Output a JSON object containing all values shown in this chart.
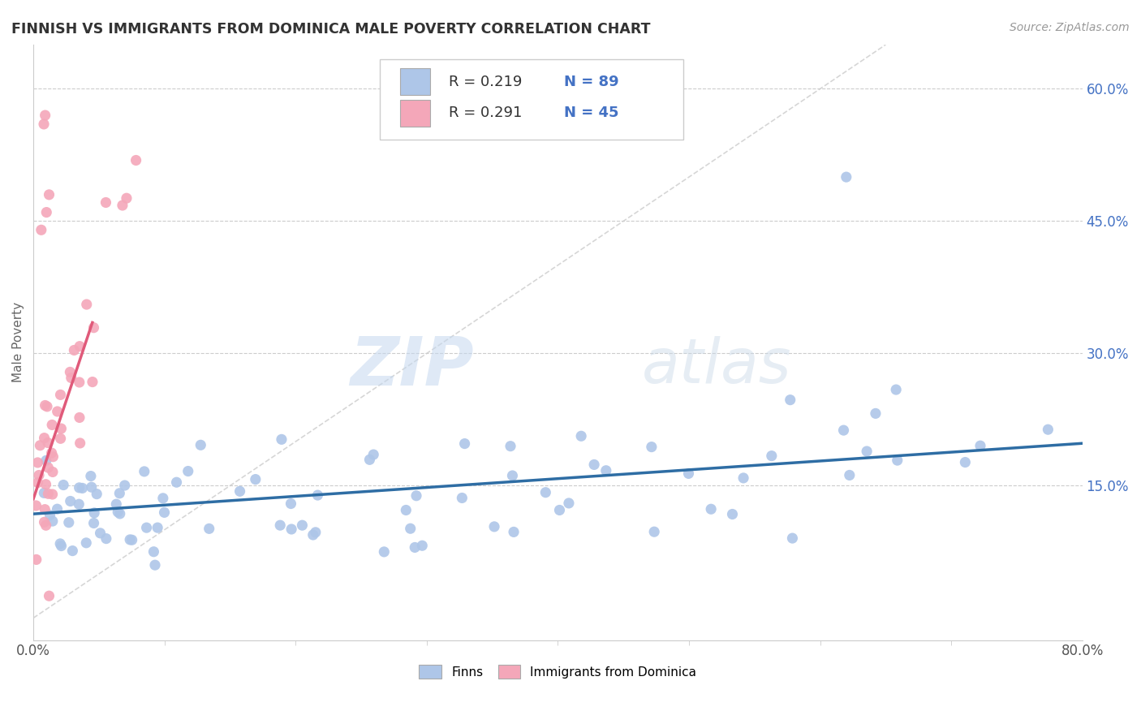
{
  "title": "FINNISH VS IMMIGRANTS FROM DOMINICA MALE POVERTY CORRELATION CHART",
  "source": "Source: ZipAtlas.com",
  "ylabel": "Male Poverty",
  "xlim": [
    0.0,
    0.8
  ],
  "ylim": [
    -0.025,
    0.65
  ],
  "ytick_positions": [
    0.15,
    0.3,
    0.45,
    0.6
  ],
  "ytick_labels": [
    "15.0%",
    "30.0%",
    "45.0%",
    "60.0%"
  ],
  "watermark_zip": "ZIP",
  "watermark_atlas": "atlas",
  "legend_r1": "R = 0.219",
  "legend_n1": "N = 89",
  "legend_r2": "R = 0.291",
  "legend_n2": "N = 45",
  "finn_color": "#aec6e8",
  "dom_color": "#f4a7b9",
  "finn_line_color": "#2e6da4",
  "dom_line_color": "#e05a7a",
  "ref_line_color": "#cccccc",
  "background_color": "#ffffff",
  "grid_color": "#cccccc",
  "text_dark": "#333333",
  "text_blue": "#4472c4",
  "finn_trend_x": [
    0.0,
    0.8
  ],
  "finn_trend_y": [
    0.118,
    0.198
  ],
  "dom_trend_x": [
    0.0,
    0.045
  ],
  "dom_trend_y": [
    0.135,
    0.335
  ],
  "ref_line_x": [
    0.0,
    0.65
  ],
  "ref_line_y": [
    0.0,
    0.65
  ]
}
